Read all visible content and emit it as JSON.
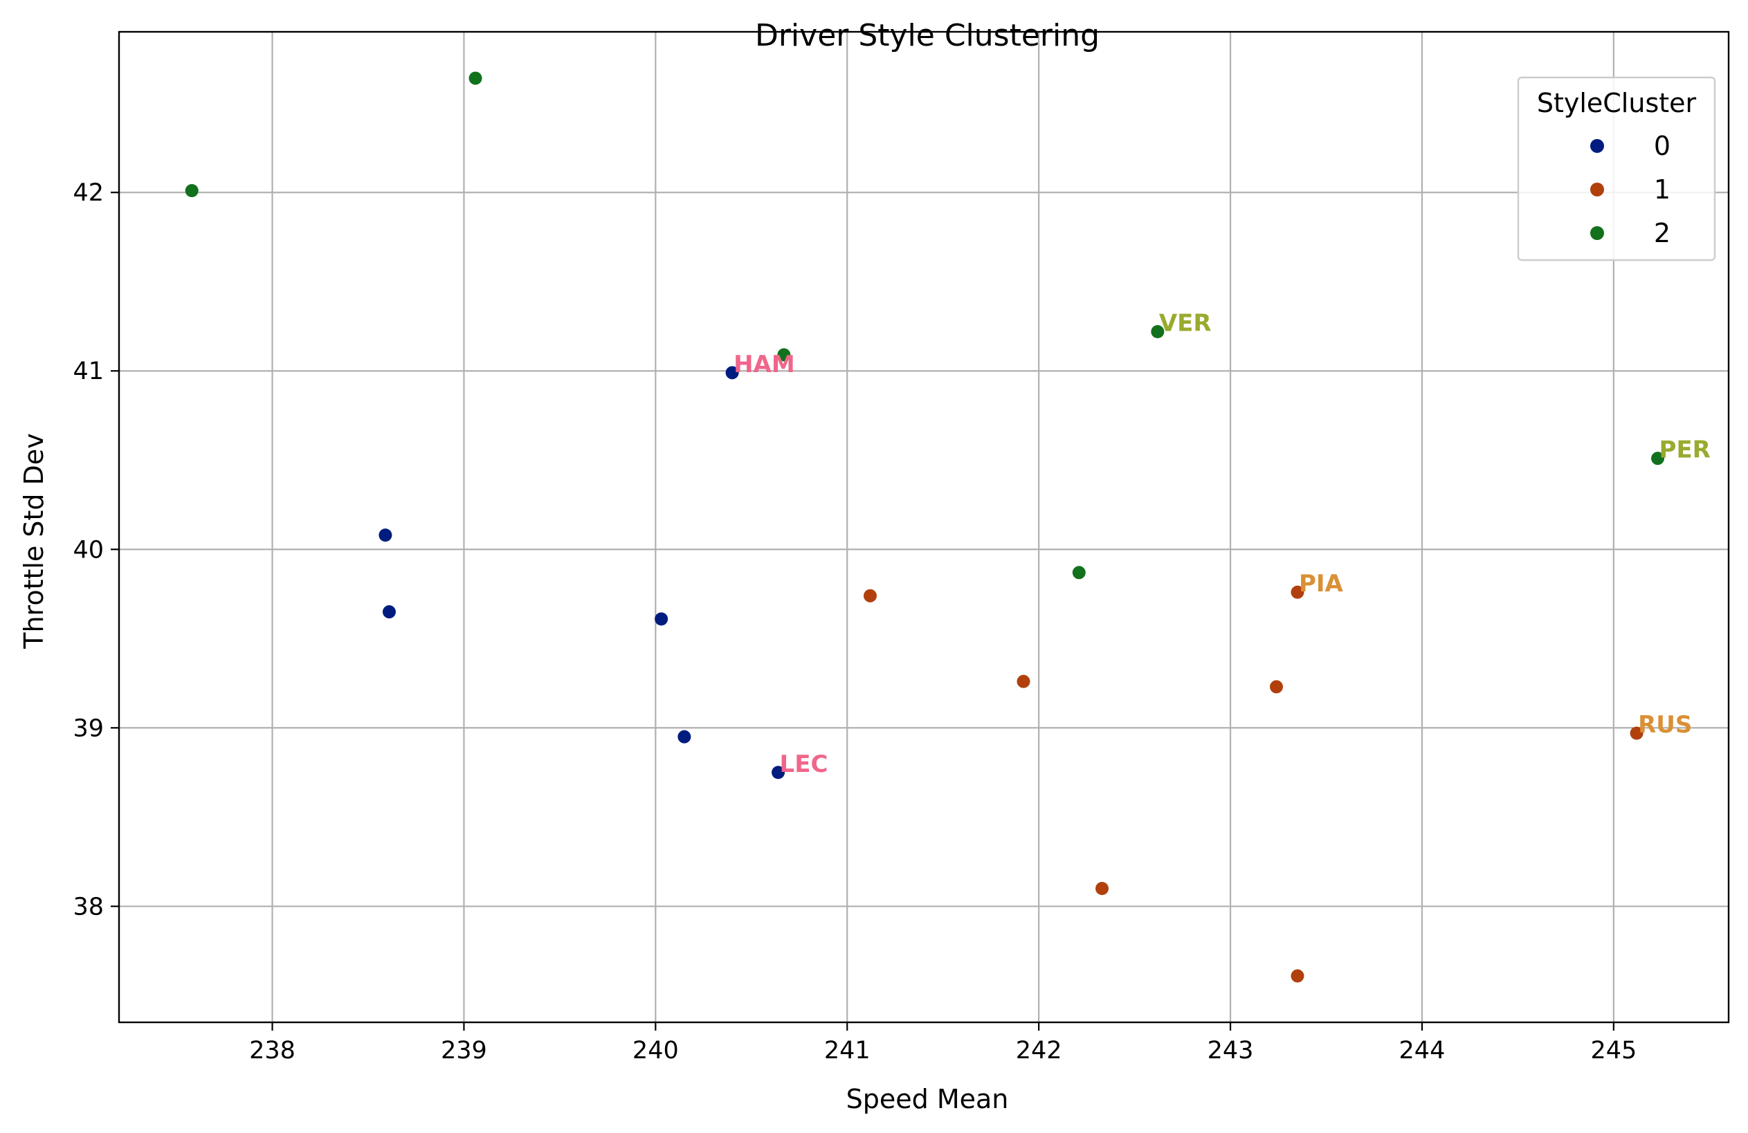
{
  "chart_data": {
    "type": "scatter",
    "title": "Driver Style Clustering",
    "xlabel": "Speed Mean",
    "ylabel": "Throttle Std Dev",
    "xlim": [
      237.2,
      245.6
    ],
    "ylim": [
      37.35,
      42.9
    ],
    "xticks": [
      238,
      239,
      240,
      241,
      242,
      243,
      244,
      245
    ],
    "yticks": [
      38,
      39,
      40,
      41,
      42
    ],
    "grid": true,
    "legend": {
      "title": "StyleCluster",
      "placement": "top-right",
      "entries": [
        {
          "label": "0",
          "color": "#001c7f"
        },
        {
          "label": "1",
          "color": "#b1400d"
        },
        {
          "label": "2",
          "color": "#12711c"
        }
      ]
    },
    "series": [
      {
        "name": "0",
        "color": "#001c7f",
        "points": [
          {
            "x": 240.4,
            "y": 40.99
          },
          {
            "x": 238.59,
            "y": 40.08
          },
          {
            "x": 238.61,
            "y": 39.65
          },
          {
            "x": 240.03,
            "y": 39.61
          },
          {
            "x": 240.15,
            "y": 38.95
          },
          {
            "x": 240.64,
            "y": 38.75
          }
        ]
      },
      {
        "name": "1",
        "color": "#b1400d",
        "points": [
          {
            "x": 241.12,
            "y": 39.74
          },
          {
            "x": 241.92,
            "y": 39.26
          },
          {
            "x": 243.35,
            "y": 39.76
          },
          {
            "x": 243.24,
            "y": 39.23
          },
          {
            "x": 245.12,
            "y": 38.97
          },
          {
            "x": 242.33,
            "y": 38.1
          },
          {
            "x": 243.35,
            "y": 37.61
          }
        ]
      },
      {
        "name": "2",
        "color": "#12711c",
        "points": [
          {
            "x": 239.06,
            "y": 42.64
          },
          {
            "x": 237.58,
            "y": 42.01
          },
          {
            "x": 240.67,
            "y": 41.09
          },
          {
            "x": 242.62,
            "y": 41.22
          },
          {
            "x": 245.23,
            "y": 40.51
          },
          {
            "x": 242.21,
            "y": 39.87
          }
        ]
      }
    ],
    "annotations": [
      {
        "text": "HAM",
        "x": 240.4,
        "y": 40.99,
        "color": "#f0668a"
      },
      {
        "text": "LEC",
        "x": 240.64,
        "y": 38.75,
        "color": "#f0668a"
      },
      {
        "text": "VER",
        "x": 242.62,
        "y": 41.22,
        "color": "#9aaa2f"
      },
      {
        "text": "PER",
        "x": 245.23,
        "y": 40.51,
        "color": "#9aaa2f"
      },
      {
        "text": "PIA",
        "x": 243.35,
        "y": 39.76,
        "color": "#d99036"
      },
      {
        "text": "RUS",
        "x": 245.12,
        "y": 38.97,
        "color": "#d99036"
      }
    ]
  }
}
